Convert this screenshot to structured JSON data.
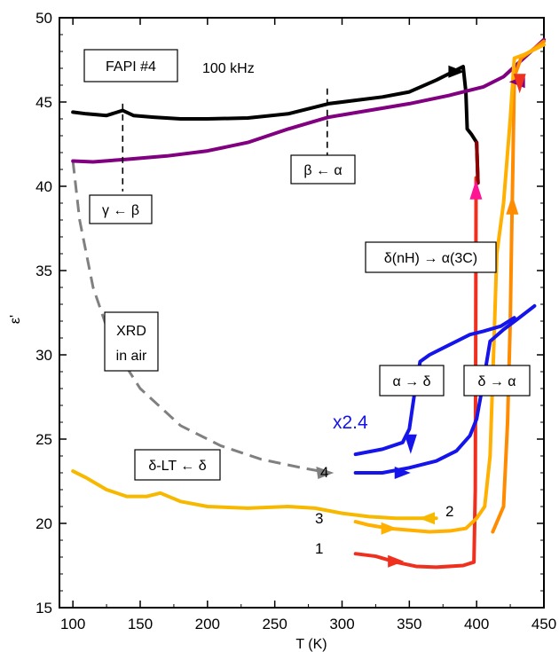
{
  "chart_data": {
    "type": "line",
    "title": "",
    "xlabel": "T (K)",
    "ylabel": "ε'",
    "xlim": [
      90,
      450
    ],
    "ylim": [
      15,
      50
    ],
    "x_ticks": [
      100,
      150,
      200,
      250,
      300,
      350,
      400,
      450
    ],
    "y_ticks": [
      15,
      20,
      25,
      30,
      35,
      40,
      45,
      50
    ],
    "grid": false,
    "sample_label": "FAPI #4",
    "frequency_label": "100 kHz",
    "scale_label": "x2.4",
    "colors": {
      "black": "#000000",
      "purple": "#800080",
      "darkred": "#8B0000",
      "red": "#F0301E",
      "pink": "#FF1493",
      "orange": "#FF8C00",
      "amber": "#FFB000",
      "gold": "#F7B800",
      "blue": "#1414EB",
      "gray": "#808080",
      "scale_label": "#1414E6"
    },
    "series": [
      {
        "color": "black",
        "points": [
          [
            100,
            44.4
          ],
          [
            110,
            44.3
          ],
          [
            125,
            44.2
          ],
          [
            137,
            44.5
          ],
          [
            145,
            44.2
          ],
          [
            160,
            44.1
          ],
          [
            180,
            44.0
          ],
          [
            200,
            44.0
          ],
          [
            230,
            44.05
          ],
          [
            260,
            44.3
          ],
          [
            290,
            44.9
          ],
          [
            330,
            45.3
          ],
          [
            350,
            45.6
          ],
          [
            370,
            46.3
          ],
          [
            385,
            46.9
          ],
          [
            390,
            47.1
          ],
          [
            392,
            45.6
          ],
          [
            393,
            43.4
          ],
          [
            396,
            43.1
          ],
          [
            400,
            42.6
          ],
          [
            401,
            40.2
          ]
        ]
      },
      {
        "color": "purple",
        "points": [
          [
            100,
            41.5
          ],
          [
            115,
            41.45
          ],
          [
            140,
            41.6
          ],
          [
            170,
            41.8
          ],
          [
            200,
            42.1
          ],
          [
            230,
            42.6
          ],
          [
            260,
            43.4
          ],
          [
            290,
            44.1
          ],
          [
            320,
            44.5
          ],
          [
            350,
            44.9
          ],
          [
            380,
            45.4
          ],
          [
            405,
            45.9
          ],
          [
            420,
            46.5
          ],
          [
            435,
            47.6
          ],
          [
            450,
            48.7
          ]
        ]
      },
      {
        "color": "red",
        "label": "1",
        "points": [
          [
            310,
            18.2
          ],
          [
            325,
            18.05
          ],
          [
            340,
            17.7
          ],
          [
            355,
            17.45
          ],
          [
            370,
            17.4
          ],
          [
            390,
            17.5
          ],
          [
            398,
            17.7
          ],
          [
            399,
            22
          ],
          [
            399.3,
            30
          ],
          [
            399.6,
            40.5
          ]
        ]
      },
      {
        "color": "orange",
        "points": [
          [
            412,
            19.5
          ],
          [
            420,
            21
          ],
          [
            423,
            26
          ],
          [
            425,
            32
          ],
          [
            426,
            37
          ],
          [
            427,
            41.5
          ],
          [
            428,
            46.5
          ],
          [
            433,
            47.6
          ],
          [
            440,
            48
          ],
          [
            450,
            48.6
          ]
        ]
      },
      {
        "color": "gold",
        "label": "2",
        "points": [
          [
            100,
            23.1
          ],
          [
            110,
            22.7
          ],
          [
            125,
            22.0
          ],
          [
            140,
            21.6
          ],
          [
            155,
            21.6
          ],
          [
            165,
            21.8
          ],
          [
            180,
            21.3
          ],
          [
            200,
            21.0
          ],
          [
            230,
            20.9
          ],
          [
            260,
            21.0
          ],
          [
            280,
            20.9
          ],
          [
            300,
            20.6
          ],
          [
            320,
            20.4
          ],
          [
            340,
            20.3
          ],
          [
            360,
            20.3
          ],
          [
            370,
            20.3
          ]
        ]
      },
      {
        "color": "amber",
        "label": "3",
        "points": [
          [
            310,
            20.1
          ],
          [
            320,
            19.9
          ],
          [
            335,
            19.7
          ],
          [
            350,
            19.6
          ],
          [
            365,
            19.5
          ],
          [
            380,
            19.55
          ],
          [
            392,
            19.7
          ],
          [
            400,
            20.3
          ],
          [
            406,
            21.0
          ],
          [
            410,
            24
          ],
          [
            413,
            31
          ],
          [
            415,
            36
          ],
          [
            420,
            39
          ],
          [
            425,
            44
          ],
          [
            428,
            47.6
          ],
          [
            435,
            47.8
          ],
          [
            450,
            48.4
          ]
        ]
      },
      {
        "color": "blue",
        "label": "4",
        "points": [
          [
            310,
            23.0
          ],
          [
            330,
            23.0
          ],
          [
            350,
            23.3
          ],
          [
            370,
            23.7
          ],
          [
            385,
            24.3
          ],
          [
            395,
            25.2
          ],
          [
            400,
            26.2
          ],
          [
            405,
            28.4
          ],
          [
            410,
            30.8
          ],
          [
            420,
            31.5
          ],
          [
            430,
            32.1
          ],
          [
            443,
            32.9
          ]
        ]
      },
      {
        "color": "blue",
        "points": [
          [
            428,
            32.2
          ],
          [
            418,
            31.7
          ],
          [
            405,
            31.4
          ],
          [
            395,
            31.2
          ],
          [
            380,
            30.6
          ],
          [
            365,
            30.0
          ],
          [
            358,
            29.6
          ],
          [
            354,
            27.8
          ],
          [
            350,
            25.6
          ],
          [
            345,
            24.8
          ],
          [
            330,
            24.4
          ],
          [
            310,
            24.1
          ]
        ]
      },
      {
        "color": "darkred",
        "points": [
          [
            401,
            40.2
          ],
          [
            400,
            42.6
          ]
        ]
      }
    ],
    "dashed_xrd": [
      [
        100,
        41.5
      ],
      [
        105,
        38
      ],
      [
        115,
        34
      ],
      [
        130,
        30.5
      ],
      [
        150,
        28
      ],
      [
        180,
        25.8
      ],
      [
        210,
        24.6
      ],
      [
        240,
        23.8
      ],
      [
        270,
        23.3
      ],
      [
        290,
        23.0
      ]
    ],
    "annotations": [
      {
        "text": "FAPI #4"
      },
      {
        "text": "γ ← β"
      },
      {
        "text": "β ← α"
      },
      {
        "text": "XRD",
        "text2": "in air"
      },
      {
        "text": "δ(nH) → α(3C)"
      },
      {
        "text": "α → δ"
      },
      {
        "text": "δ → α"
      },
      {
        "text": "δ-LT ← δ"
      }
    ],
    "point_labels": [
      "1",
      "2",
      "3",
      "4"
    ]
  }
}
